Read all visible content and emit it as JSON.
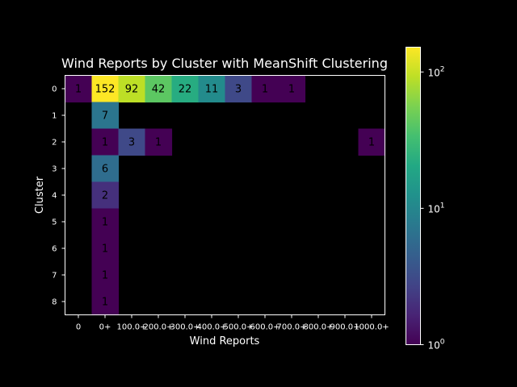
{
  "chart_data": {
    "type": "heatmap",
    "title": "Wind Reports by Cluster with MeanShift Clustering",
    "xlabel": "Wind Reports",
    "ylabel": "Cluster",
    "x_categories": [
      "0",
      "0+",
      "100.0+",
      "200.0+",
      "300.0+",
      "400.0+",
      "500.0+",
      "600.0+",
      "700.0+",
      "800.0+",
      "900.0+",
      "1000.0+"
    ],
    "y_categories": [
      "0",
      "1",
      "2",
      "3",
      "4",
      "5",
      "6",
      "7",
      "8"
    ],
    "values": [
      [
        1,
        152,
        92,
        42,
        22,
        11,
        3,
        1,
        1,
        null,
        null,
        null
      ],
      [
        null,
        7,
        null,
        null,
        null,
        null,
        null,
        null,
        null,
        null,
        null,
        null
      ],
      [
        null,
        1,
        3,
        1,
        null,
        null,
        null,
        null,
        null,
        null,
        null,
        1
      ],
      [
        null,
        6,
        null,
        null,
        null,
        null,
        null,
        null,
        null,
        null,
        null,
        null
      ],
      [
        null,
        2,
        null,
        null,
        null,
        null,
        null,
        null,
        null,
        null,
        null,
        null
      ],
      [
        null,
        1,
        null,
        null,
        null,
        null,
        null,
        null,
        null,
        null,
        null,
        null
      ],
      [
        null,
        1,
        null,
        null,
        null,
        null,
        null,
        null,
        null,
        null,
        null,
        null
      ],
      [
        null,
        1,
        null,
        null,
        null,
        null,
        null,
        null,
        null,
        null,
        null,
        null
      ],
      [
        null,
        1,
        null,
        null,
        null,
        null,
        null,
        null,
        null,
        null,
        null,
        null
      ]
    ],
    "color_scale": "log",
    "colormap": "viridis",
    "colorbar_range": [
      1,
      152
    ],
    "colorbar_ticks": [
      {
        "value": 1,
        "base": "10",
        "exp": "0"
      },
      {
        "value": 10,
        "base": "10",
        "exp": "1"
      },
      {
        "value": 100,
        "base": "10",
        "exp": "2"
      }
    ],
    "background": "#000000",
    "text_color": "#ffffff"
  }
}
